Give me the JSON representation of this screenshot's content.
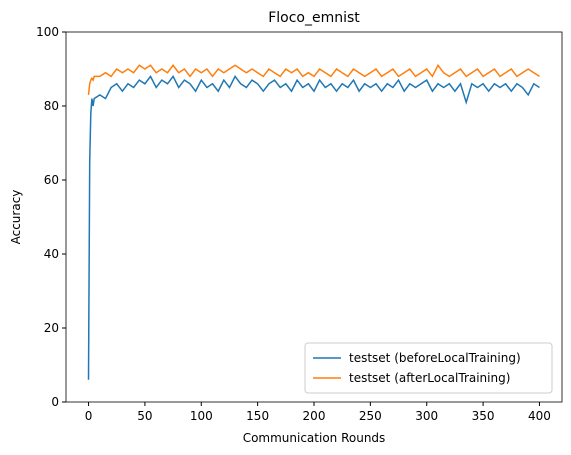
{
  "chart_data": {
    "type": "line",
    "title": "Floco_emnist",
    "xlabel": "Communication Rounds",
    "ylabel": "Accuracy",
    "x": [
      0,
      1,
      2,
      3,
      4,
      5,
      10,
      15,
      20,
      25,
      30,
      35,
      40,
      45,
      50,
      55,
      60,
      65,
      70,
      75,
      80,
      85,
      90,
      95,
      100,
      105,
      110,
      115,
      120,
      125,
      130,
      135,
      140,
      145,
      150,
      155,
      160,
      165,
      170,
      175,
      180,
      185,
      190,
      195,
      200,
      205,
      210,
      215,
      220,
      225,
      230,
      235,
      240,
      245,
      250,
      255,
      260,
      265,
      270,
      275,
      280,
      285,
      290,
      295,
      300,
      305,
      310,
      315,
      320,
      325,
      330,
      335,
      340,
      345,
      350,
      355,
      360,
      365,
      370,
      375,
      380,
      385,
      390,
      395,
      400
    ],
    "series": [
      {
        "name": "testset (beforeLocalTraining)",
        "color": "#1f77b4",
        "values": [
          6,
          65,
          78,
          82,
          80,
          82,
          83,
          82,
          85,
          86,
          84,
          86,
          85,
          87,
          86,
          88,
          85,
          87,
          86,
          88,
          85,
          87,
          86,
          84,
          87,
          85,
          86,
          84,
          87,
          85,
          88,
          86,
          85,
          87,
          86,
          84,
          86,
          87,
          85,
          86,
          84,
          87,
          85,
          86,
          84,
          87,
          85,
          86,
          84,
          86,
          85,
          87,
          84,
          86,
          85,
          86,
          84,
          86,
          85,
          87,
          84,
          86,
          85,
          86,
          87,
          84,
          86,
          85,
          86,
          84,
          86,
          81,
          86,
          85,
          86,
          84,
          86,
          85,
          86,
          84,
          86,
          85,
          83,
          86,
          85
        ]
      },
      {
        "name": "testset (afterLocalTraining)",
        "color": "#ff7f0e",
        "values": [
          83,
          86,
          87,
          87.5,
          87,
          88,
          88,
          89,
          88,
          90,
          89,
          90,
          89,
          91,
          90,
          91,
          89,
          90,
          89,
          91,
          89,
          90,
          88,
          90,
          89,
          90,
          88,
          90,
          89,
          90,
          91,
          90,
          89,
          90,
          89,
          88,
          90,
          89,
          88,
          90,
          89,
          90,
          88,
          89,
          88,
          90,
          89,
          88,
          90,
          89,
          88,
          90,
          89,
          88,
          89,
          90,
          88,
          89,
          90,
          88,
          89,
          90,
          88,
          89,
          90,
          88,
          91,
          89,
          88,
          89,
          90,
          88,
          89,
          90,
          88,
          89,
          90,
          88,
          89,
          90,
          88,
          89,
          90,
          89,
          88
        ]
      }
    ],
    "xlim": [
      -20,
      420
    ],
    "ylim": [
      0,
      100
    ],
    "xticks": [
      0,
      50,
      100,
      150,
      200,
      250,
      300,
      350,
      400
    ],
    "yticks": [
      0,
      20,
      40,
      60,
      80,
      100
    ],
    "legend": "lower right"
  }
}
